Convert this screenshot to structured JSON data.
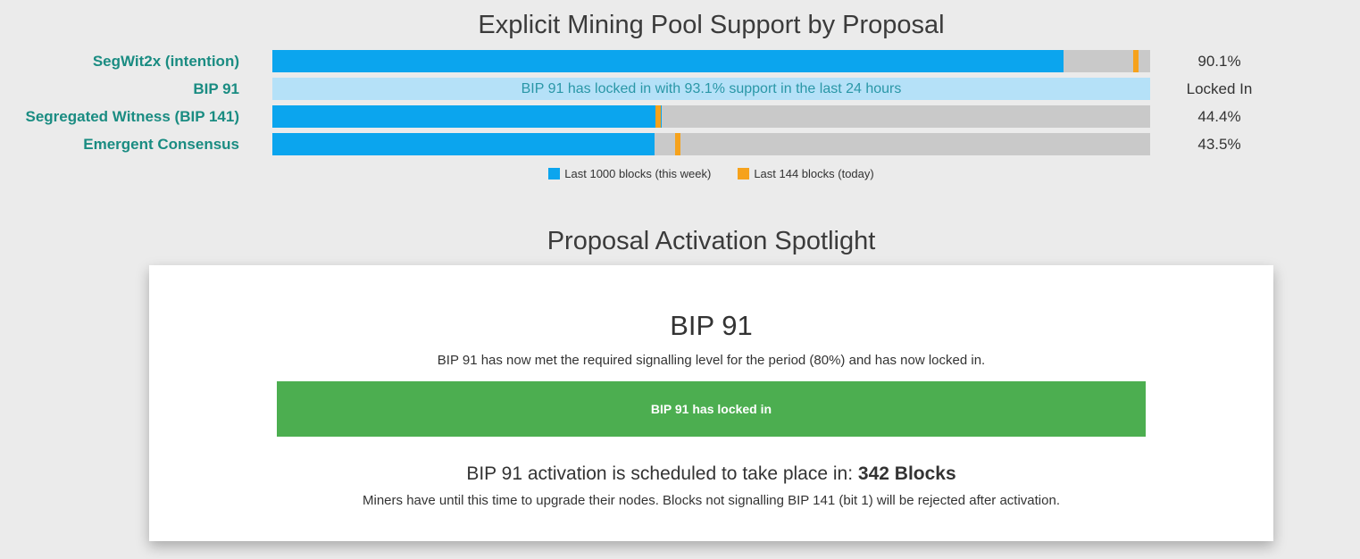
{
  "colors": {
    "background": "#ebebeb",
    "bar_week_blue": "#0ba5ee",
    "bar_locked_light_blue": "#b5e1f8",
    "bar_track_gray": "#c9c9c9",
    "marker_today_orange": "#f6a21c",
    "proposal_label_teal": "#1a8c82",
    "locked_bar_text_teal": "#2a97a7",
    "banner_green": "#4cae50",
    "heading_text": "#3b3b3b"
  },
  "chart": {
    "title": "Explicit Mining Pool Support by Proposal",
    "rows": [
      {
        "label": "SegWit2x (intention)",
        "value_label": "90.1%",
        "week_pct": 90.1,
        "today_pct": 98.4
      },
      {
        "label": "BIP 91",
        "value_label": "Locked In",
        "week_pct": 100,
        "bar_text": "BIP 91 has locked in with 93.1% support in the last 24 hours"
      },
      {
        "label": "Segregated Witness (BIP 141)",
        "value_label": "44.4%",
        "week_pct": 44.4,
        "today_pct": 43.9
      },
      {
        "label": "Emergent Consensus",
        "value_label": "43.5%",
        "week_pct": 43.5,
        "today_pct": 46.2
      }
    ],
    "legend": [
      {
        "label": "Last 1000 blocks (this week)",
        "color": "#0ba5ee"
      },
      {
        "label": "Last 144 blocks (today)",
        "color": "#f6a21c"
      }
    ]
  },
  "chart_data": {
    "type": "bar",
    "orientation": "horizontal",
    "title": "Explicit Mining Pool Support by Proposal",
    "categories": [
      "SegWit2x (intention)",
      "BIP 91",
      "Segregated Witness (BIP 141)",
      "Emergent Consensus"
    ],
    "series": [
      {
        "name": "Last 1000 blocks (this week)",
        "style": "bar",
        "color": "#0ba5ee",
        "values": [
          90.1,
          null,
          44.4,
          43.5
        ]
      },
      {
        "name": "Last 144 blocks (today)",
        "style": "tick-marker",
        "color": "#f6a21c",
        "values": [
          98.4,
          null,
          43.9,
          46.2
        ],
        "note": "marker positions estimated from pixels; no numeric labels shown"
      }
    ],
    "value_labels": [
      "90.1%",
      "Locked In",
      "44.4%",
      "43.5%"
    ],
    "special_rows": [
      {
        "category": "BIP 91",
        "status": "Locked In",
        "bar_text": "BIP 91 has locked in with 93.1% support in the last 24 hours",
        "bar_color": "#b5e1f8"
      }
    ],
    "xlim": [
      0,
      100
    ],
    "grid": false,
    "legend_position": "bottom"
  },
  "spotlight": {
    "title": "Proposal Activation Spotlight",
    "card": {
      "heading": "BIP 91",
      "description": "BIP 91 has now met the required signalling level for the period (80%) and has now locked in.",
      "status_banner": "BIP 91 has locked in",
      "activation_text": "BIP 91 activation is scheduled to take place in:",
      "activation_blocks": "342 Blocks",
      "footnote": "Miners have until this time to upgrade their nodes. Blocks not signalling BIP 141 (bit 1) will be rejected after activation."
    }
  }
}
